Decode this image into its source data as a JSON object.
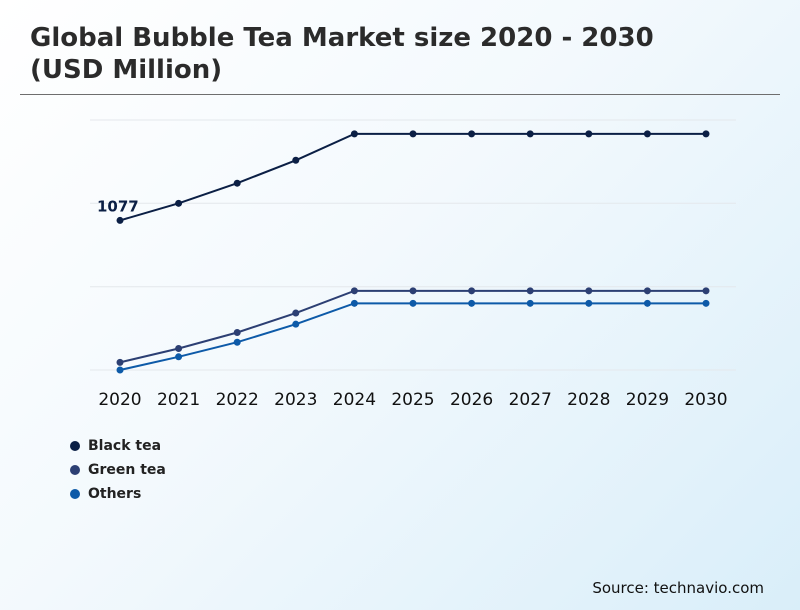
{
  "chart_data": {
    "type": "line",
    "title": "Global Bubble Tea Market size 2020 - 2030 (USD Million)",
    "x": [
      "2020",
      "2021",
      "2022",
      "2023",
      "2024",
      "2025",
      "2026",
      "2027",
      "2028",
      "2029",
      "2030"
    ],
    "ylim": [
      0,
      1800
    ],
    "grid": true,
    "xlabel": "",
    "ylabel": "",
    "legend_position": "bottom-left",
    "series": [
      {
        "name": "Black tea",
        "color": "#0b1f45",
        "values": [
          1077,
          1200,
          1345,
          1510,
          1700,
          1700,
          1700,
          1700,
          1700,
          1700,
          1700
        ]
      },
      {
        "name": "Green tea",
        "color": "#2c3f73",
        "values": [
          55,
          155,
          270,
          410,
          570,
          570,
          570,
          570,
          570,
          570,
          570
        ]
      },
      {
        "name": "Others",
        "color": "#0d5aa8",
        "values": [
          0,
          95,
          200,
          330,
          480,
          480,
          480,
          480,
          480,
          480,
          480
        ]
      }
    ],
    "annotations": [
      {
        "series": "Black tea",
        "index": 0,
        "text": "1077"
      }
    ]
  },
  "source": "Source: technavio.com"
}
